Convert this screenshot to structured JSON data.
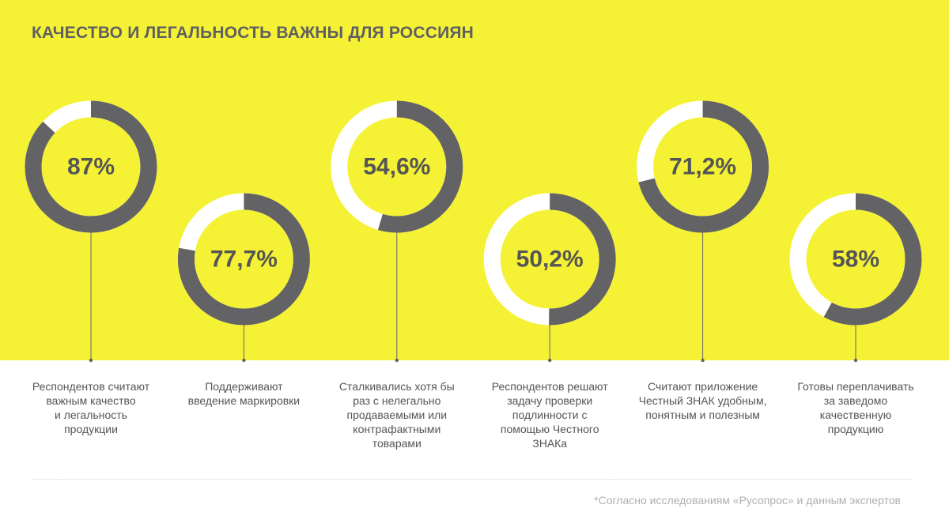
{
  "title": "КАЧЕСТВО И ЛЕГАЛЬНОСТЬ ВАЖНЫ ДЛЯ РОССИЯН",
  "footnote": "*Согласно исследованиям «Русопрос» и данным экспертов",
  "colors": {
    "background_band": "#f5f235",
    "ring_filled": "#636366",
    "ring_empty": "#ffffff",
    "value_text": "#555557"
  },
  "chart_data": {
    "type": "donut",
    "items": [
      {
        "label": "87%",
        "value": 87,
        "caption": [
          "Респондентов считают",
          "важным качество",
          "и легальность",
          "продукции"
        ]
      },
      {
        "label": "77,7%",
        "value": 77.7,
        "caption": [
          "Поддерживают",
          "введение маркировки"
        ]
      },
      {
        "label": "54,6%",
        "value": 54.6,
        "caption": [
          "Сталкивались хотя бы",
          "раз с нелегально",
          "продаваемыми или",
          "контрафактными",
          "товарами"
        ]
      },
      {
        "label": "50,2%",
        "value": 50.2,
        "caption": [
          "Респондентов решают",
          "задачу проверки",
          "подлинности с",
          "помощью Честного",
          "ЗНАКа"
        ]
      },
      {
        "label": "71,2%",
        "value": 71.2,
        "caption": [
          "Считают приложение",
          "Честный ЗНАК удобным,",
          "понятным и полезным"
        ]
      },
      {
        "label": "58%",
        "value": 58,
        "caption": [
          "Готовы переплачивать",
          "за заведомо",
          "качественную",
          "продукцию"
        ]
      }
    ]
  }
}
